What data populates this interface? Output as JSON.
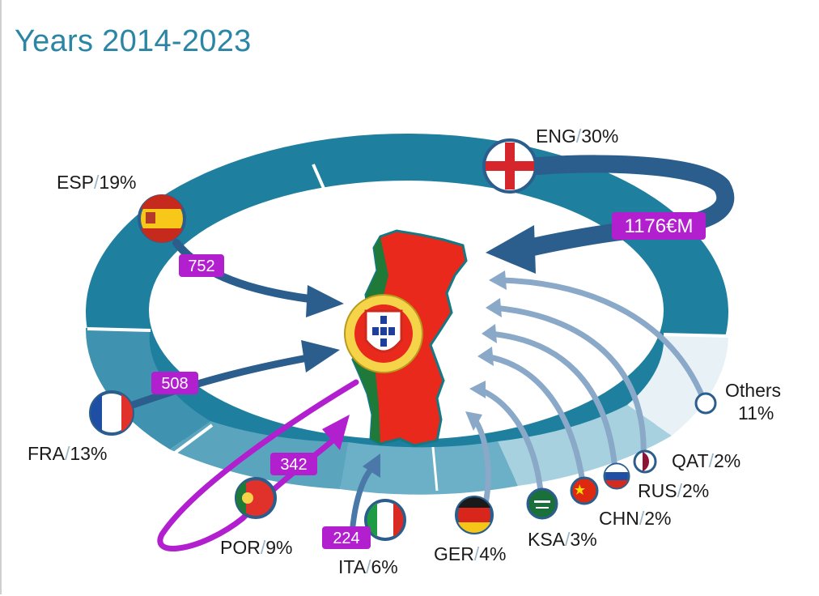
{
  "title": "Years 2014-2023",
  "colors": {
    "ring_dark": "#1f7f9f",
    "ring_mid": "#4f9db8",
    "ring_light": "#9ccbda",
    "arrow_dark": "#2b5e8c",
    "arrow_light": "#8aa8c8",
    "badge": "#b21fcf",
    "map_red": "#e8291c",
    "map_green": "#1f7a3a"
  },
  "chart_data": {
    "type": "pie",
    "title": "Years 2014-2023",
    "unit": "€M",
    "slices": [
      {
        "code": "ENG",
        "share": 30,
        "share_label": "30%",
        "amount": 1176,
        "amount_label": "1176€M",
        "flag": "england-flag"
      },
      {
        "code": "ESP",
        "share": 19,
        "share_label": "19%",
        "amount": 752,
        "amount_label": "752",
        "flag": "spain-flag"
      },
      {
        "code": "FRA",
        "share": 13,
        "share_label": "13%",
        "amount": 508,
        "amount_label": "508",
        "flag": "france-flag"
      },
      {
        "code": "POR",
        "share": 9,
        "share_label": "9%",
        "amount": 342,
        "amount_label": "342",
        "flag": "portugal-flag"
      },
      {
        "code": "ITA",
        "share": 6,
        "share_label": "6%",
        "amount": 224,
        "amount_label": "224",
        "flag": "italy-flag"
      },
      {
        "code": "GER",
        "share": 4,
        "share_label": "4%",
        "flag": "germany-flag"
      },
      {
        "code": "KSA",
        "share": 3,
        "share_label": "3%",
        "flag": "saudi-flag"
      },
      {
        "code": "CHN",
        "share": 2,
        "share_label": "2%",
        "flag": "china-flag"
      },
      {
        "code": "RUS",
        "share": 2,
        "share_label": "2%",
        "flag": "russia-flag"
      },
      {
        "code": "QAT",
        "share": 2,
        "share_label": "2%",
        "flag": "qatar-flag"
      },
      {
        "code": "Others",
        "share": 11,
        "share_label": "11%"
      }
    ]
  }
}
